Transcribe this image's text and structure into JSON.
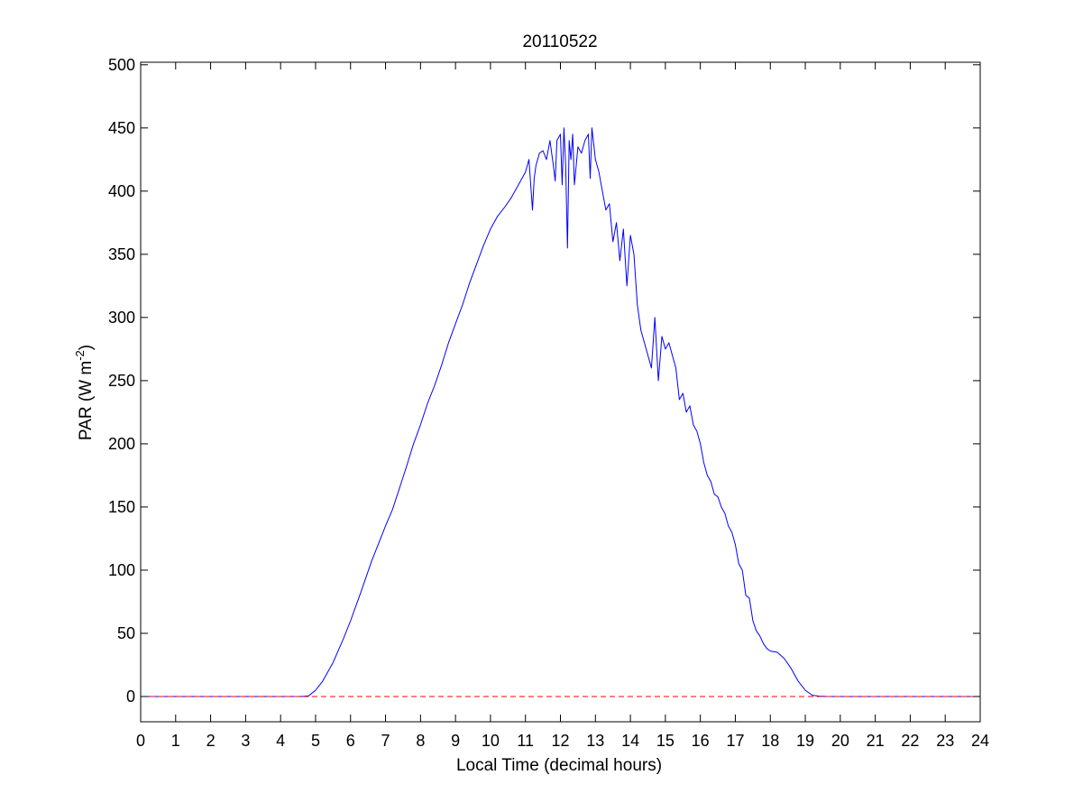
{
  "chart_data": {
    "type": "line",
    "title": "20110522",
    "xlabel": "Local Time (decimal hours)",
    "ylabel": {
      "main": "PAR (W m",
      "superscript": "-2",
      "close": ")"
    },
    "xlim": [
      0,
      24
    ],
    "ylim": [
      -20,
      502
    ],
    "xticks": [
      0,
      1,
      2,
      3,
      4,
      5,
      6,
      7,
      8,
      9,
      10,
      11,
      12,
      13,
      14,
      15,
      16,
      17,
      18,
      19,
      20,
      21,
      22,
      23,
      24
    ],
    "yticks": [
      0,
      50,
      100,
      150,
      200,
      250,
      300,
      350,
      400,
      450,
      500
    ],
    "grid": false,
    "series": [
      {
        "color": "#0000ff",
        "style": "solid",
        "x": [
          0,
          4.6,
          4.8,
          5.0,
          5.2,
          5.5,
          5.8,
          6.0,
          6.3,
          6.6,
          6.9,
          7.0,
          7.2,
          7.4,
          7.6,
          7.8,
          8.0,
          8.2,
          8.4,
          8.6,
          8.8,
          9.0,
          9.2,
          9.4,
          9.6,
          9.8,
          10.0,
          10.2,
          10.4,
          10.6,
          10.8,
          11.0,
          11.1,
          11.2,
          11.25,
          11.3,
          11.4,
          11.5,
          11.6,
          11.7,
          11.8,
          11.85,
          11.9,
          12.0,
          12.05,
          12.1,
          12.15,
          12.2,
          12.25,
          12.3,
          12.35,
          12.4,
          12.5,
          12.6,
          12.7,
          12.8,
          12.85,
          12.9,
          13.0,
          13.1,
          13.2,
          13.3,
          13.4,
          13.5,
          13.6,
          13.7,
          13.8,
          13.9,
          14.0,
          14.1,
          14.2,
          14.3,
          14.4,
          14.5,
          14.6,
          14.7,
          14.8,
          14.9,
          15.0,
          15.1,
          15.2,
          15.3,
          15.4,
          15.5,
          15.6,
          15.7,
          15.8,
          15.9,
          16.0,
          16.1,
          16.2,
          16.3,
          16.4,
          16.5,
          16.6,
          16.7,
          16.8,
          16.9,
          17.0,
          17.1,
          17.2,
          17.3,
          17.4,
          17.5,
          17.6,
          17.7,
          17.8,
          17.9,
          18.0,
          18.2,
          18.4,
          18.6,
          18.8,
          19.0,
          19.2,
          19.4,
          19.6,
          19.8,
          20.0,
          21.0,
          22.0,
          23.0,
          24.0
        ],
        "y": [
          0,
          0,
          0.5,
          5,
          12,
          27,
          46,
          60,
          83,
          107,
          128,
          135,
          148,
          165,
          182,
          200,
          215,
          232,
          246,
          262,
          280,
          295,
          310,
          327,
          342,
          357,
          370,
          380,
          387,
          395,
          405,
          415,
          425,
          385,
          410,
          420,
          430,
          432,
          425,
          440,
          420,
          408,
          440,
          445,
          405,
          450,
          420,
          355,
          440,
          425,
          445,
          405,
          435,
          430,
          440,
          445,
          410,
          450,
          425,
          415,
          400,
          385,
          390,
          360,
          375,
          345,
          370,
          325,
          365,
          350,
          310,
          290,
          280,
          270,
          260,
          300,
          250,
          285,
          275,
          280,
          270,
          260,
          235,
          240,
          225,
          230,
          215,
          210,
          200,
          185,
          175,
          170,
          160,
          158,
          150,
          145,
          135,
          130,
          120,
          105,
          100,
          80,
          78,
          60,
          52,
          48,
          42,
          38,
          36,
          35,
          30,
          22,
          12,
          5,
          1,
          0.3,
          0,
          0,
          0,
          0,
          0,
          0,
          0
        ]
      },
      {
        "color": "#ff0000",
        "style": "dashed",
        "x": [
          0,
          24
        ],
        "y": [
          0,
          0
        ]
      }
    ]
  }
}
